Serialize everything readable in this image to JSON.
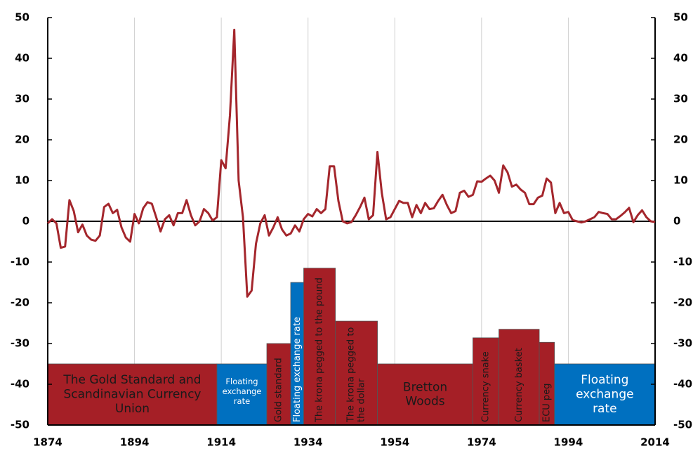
{
  "chart_data": {
    "type": "line",
    "x": [
      1874,
      1875,
      1876,
      1877,
      1878,
      1879,
      1880,
      1881,
      1882,
      1883,
      1884,
      1885,
      1886,
      1887,
      1888,
      1889,
      1890,
      1891,
      1892,
      1893,
      1894,
      1895,
      1896,
      1897,
      1898,
      1899,
      1900,
      1901,
      1902,
      1903,
      1904,
      1905,
      1906,
      1907,
      1908,
      1909,
      1910,
      1911,
      1912,
      1913,
      1914,
      1915,
      1916,
      1917,
      1918,
      1919,
      1920,
      1921,
      1922,
      1923,
      1924,
      1925,
      1926,
      1927,
      1928,
      1929,
      1930,
      1931,
      1932,
      1933,
      1934,
      1935,
      1936,
      1937,
      1938,
      1939,
      1940,
      1941,
      1942,
      1943,
      1944,
      1945,
      1946,
      1947,
      1948,
      1949,
      1950,
      1951,
      1952,
      1953,
      1954,
      1955,
      1956,
      1957,
      1958,
      1959,
      1960,
      1961,
      1962,
      1963,
      1964,
      1965,
      1966,
      1967,
      1968,
      1969,
      1970,
      1971,
      1972,
      1973,
      1974,
      1975,
      1976,
      1977,
      1978,
      1979,
      1980,
      1981,
      1982,
      1983,
      1984,
      1985,
      1986,
      1987,
      1988,
      1989,
      1990,
      1991,
      1992,
      1993,
      1994,
      1995,
      1996,
      1997,
      1998,
      1999,
      2000,
      2001,
      2002,
      2003,
      2004,
      2005,
      2006,
      2007,
      2008,
      2009,
      2010,
      2011,
      2012,
      2013,
      2014
    ],
    "series": [
      {
        "color": "#a4262c",
        "values": [
          -0.5,
          0.5,
          -0.5,
          -6.5,
          -6.2,
          5.2,
          2.5,
          -2.7,
          -0.8,
          -3.5,
          -4.5,
          -4.8,
          -3.5,
          3.5,
          4.3,
          2,
          2.8,
          -1.5,
          -4,
          -5,
          1.8,
          -0.5,
          3.2,
          4.7,
          4.3,
          1,
          -2.5,
          0.5,
          1.5,
          -1,
          2,
          2,
          5.2,
          1.5,
          -1,
          0,
          3,
          2,
          0.2,
          1,
          15,
          13,
          26,
          47,
          10,
          1,
          -18.5,
          -17,
          -5.5,
          -0.5,
          1.5,
          -3.5,
          -1.5,
          1,
          -2,
          -3.5,
          -3,
          -1,
          -2.5,
          0.5,
          1.8,
          1.2,
          3,
          2,
          3,
          13.5,
          13.5,
          5,
          0,
          -0.5,
          -0.2,
          1.5,
          3.5,
          5.8,
          0.5,
          1.5,
          17,
          7,
          0.5,
          1,
          3,
          5,
          4.5,
          4.5,
          1,
          4,
          2,
          4.5,
          3,
          3.2,
          5,
          6.5,
          4,
          2,
          2.5,
          7,
          7.5,
          6,
          6.5,
          9.8,
          9.7,
          10.5,
          11.2,
          10,
          7,
          13.7,
          12,
          8.5,
          9,
          7.8,
          7,
          4.2,
          4.2,
          5.8,
          6.3,
          10.5,
          9.5,
          2,
          4.5,
          2,
          2.3,
          0.3,
          0,
          -0.3,
          0,
          0.5,
          1,
          2.3,
          2,
          1.8,
          0.5,
          0.5,
          1.3,
          2.2,
          3.3,
          -0.2,
          1.5,
          2.7,
          1,
          0,
          -0.2
        ]
      }
    ],
    "regimes": [
      {
        "label": [
          "The Gold Standard and",
          "Scandinavian Currency",
          "Union"
        ],
        "start": 1874,
        "end": 1913,
        "top": -35,
        "color": "#a51f26",
        "vertical": false
      },
      {
        "label": [
          "Floating",
          "exchange",
          "rate"
        ],
        "start": 1913,
        "end": 1924.5,
        "top": -35,
        "color": "#0070c0",
        "vertical": false
      },
      {
        "label": [
          "Gold standard"
        ],
        "start": 1924.5,
        "end": 1930,
        "top": -30,
        "color": "#a51f26",
        "vertical": true
      },
      {
        "label": [
          "Floating exchange rate"
        ],
        "start": 1930,
        "end": 1933,
        "top": -15,
        "color": "#0070c0",
        "vertical": true
      },
      {
        "label": [
          "The krona pegged to the pound"
        ],
        "start": 1933,
        "end": 1940.3,
        "top": -11.5,
        "color": "#a51f26",
        "vertical": true
      },
      {
        "label": [
          "The krona pegged to",
          "the dollar"
        ],
        "start": 1940.3,
        "end": 1950,
        "top": -24.5,
        "color": "#a51f26",
        "vertical": true
      },
      {
        "label": [
          "Bretton",
          "Woods"
        ],
        "start": 1950,
        "end": 1972,
        "top": -35,
        "color": "#a51f26",
        "vertical": false
      },
      {
        "label": [
          "Currency snake"
        ],
        "start": 1972,
        "end": 1978,
        "top": -28.6,
        "color": "#a51f26",
        "vertical": true
      },
      {
        "label": [
          "Currency basket"
        ],
        "start": 1978,
        "end": 1987.3,
        "top": -26.5,
        "color": "#a51f26",
        "vertical": true
      },
      {
        "label": [
          "ECU peg"
        ],
        "start": 1987.3,
        "end": 1990.8,
        "top": -29.7,
        "color": "#a51f26",
        "vertical": true
      },
      {
        "label": [
          "Floating",
          "exchange",
          "rate"
        ],
        "start": 1990.8,
        "end": 2014,
        "top": -35,
        "color": "#0070c0",
        "vertical": false
      }
    ],
    "xlim": [
      1874,
      2014
    ],
    "xticks": [
      1874,
      1894,
      1914,
      1934,
      1954,
      1974,
      1994,
      2014
    ],
    "ylim": [
      -50,
      50
    ],
    "yticks": [
      -50,
      -40,
      -30,
      -20,
      -10,
      0,
      10,
      20,
      30,
      40,
      50
    ],
    "y2lim": [
      -50,
      50
    ],
    "y2ticks": [
      -50,
      -40,
      -30,
      -20,
      -10,
      0,
      10,
      20,
      30,
      40,
      50
    ],
    "grid": "x"
  }
}
